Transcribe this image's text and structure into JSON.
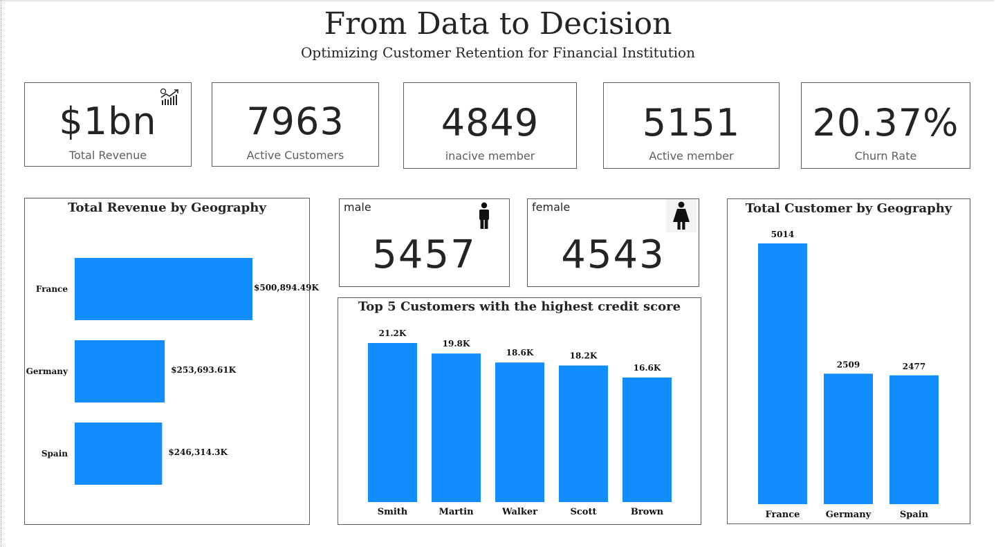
{
  "header": {
    "title": "From Data to Decision",
    "subtitle": "Optimizing Customer Retention for Financial Institution"
  },
  "kpis": [
    {
      "value": "$1bn",
      "label": "Total Revenue",
      "icon": "revenue-growth-icon"
    },
    {
      "value": "7963",
      "label": "Active Customers"
    },
    {
      "value": "4849",
      "label": "inacive member"
    },
    {
      "value": "5151",
      "label": "Active member"
    },
    {
      "value": "20.37%",
      "label": "Churn Rate"
    }
  ],
  "gender": {
    "male": {
      "label": "male",
      "value": "5457",
      "icon": "male-icon"
    },
    "female": {
      "label": "female",
      "value": "4543",
      "icon": "female-icon"
    }
  },
  "colors": {
    "bar": "#118dff"
  },
  "chart_data": [
    {
      "id": "revenue_geo",
      "type": "bar",
      "orientation": "horizontal",
      "title": "Total Revenue by Geography",
      "categories": [
        "France",
        "Germany",
        "Spain"
      ],
      "values": [
        500894.49,
        253693.61,
        246314.3
      ],
      "labels": [
        "$500,894.49K",
        "$253,693.61K",
        "$246,314.3K"
      ]
    },
    {
      "id": "top_credit",
      "type": "bar",
      "title": "Top 5 Customers with the highest credit score",
      "categories": [
        "Smith",
        "Martin",
        "Walker",
        "Scott",
        "Brown"
      ],
      "values": [
        21.2,
        19.8,
        18.6,
        18.2,
        16.6
      ],
      "labels": [
        "21.2K",
        "19.8K",
        "18.6K",
        "18.2K",
        "16.6K"
      ]
    },
    {
      "id": "customer_geo",
      "type": "bar",
      "title": "Total Customer by Geography",
      "categories": [
        "France",
        "Germany",
        "Spain"
      ],
      "values": [
        5014,
        2509,
        2477
      ],
      "labels": [
        "5014",
        "2509",
        "2477"
      ]
    }
  ]
}
